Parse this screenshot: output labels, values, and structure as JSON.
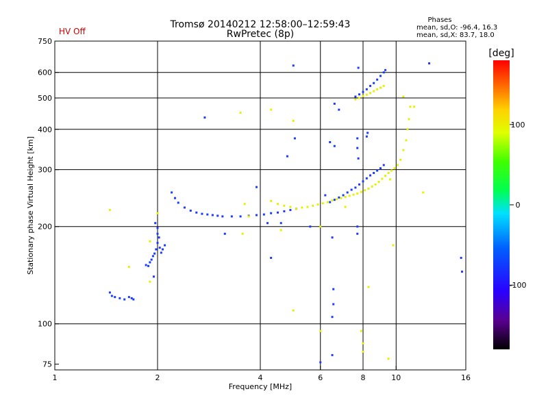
{
  "header": {
    "title_line1": "Tromsø 20140212 12:58:00–12:59:43",
    "title_line2": "RwPretec (8p)",
    "status": "HV Off",
    "phases_title": "Phases",
    "phases_o": "mean, sd,O: -96.4, 16.3",
    "phases_x": "mean, sd,X: 83.7, 18.0"
  },
  "colors": {
    "status": "#cc0000",
    "grid": "#000000"
  },
  "chart_data": {
    "type": "scatter",
    "title": "Tromsø 20140212 12:58:00–12:59:43",
    "subtitle": "RwPretec (8p)",
    "xlabel": "Frequency [MHz]",
    "ylabel": "Stationary phase Virtual Height [km]",
    "xscale": "log",
    "yscale": "log",
    "xlim": [
      1,
      16
    ],
    "ylim": [
      72,
      750
    ],
    "xticks": [
      1,
      2,
      4,
      6,
      8,
      10,
      16
    ],
    "yticks": [
      75,
      100,
      200,
      300,
      400,
      500,
      600,
      750
    ],
    "xgrid": [
      2,
      4,
      6,
      8,
      10
    ],
    "ygrid": [
      100,
      200,
      300,
      400,
      500,
      600
    ],
    "colorbar": {
      "label": "[deg]",
      "range": [
        -180,
        180
      ],
      "ticks": [
        100,
        0,
        -100
      ]
    },
    "series": [
      {
        "mode": "O",
        "phase_deg": -96.4,
        "points": [
          [
            1.45,
            125
          ],
          [
            1.47,
            122
          ],
          [
            1.5,
            121
          ],
          [
            1.55,
            120
          ],
          [
            1.6,
            119
          ],
          [
            1.65,
            121
          ],
          [
            1.68,
            120
          ],
          [
            1.7,
            119
          ],
          [
            1.85,
            152
          ],
          [
            1.88,
            151
          ],
          [
            1.9,
            155
          ],
          [
            1.92,
            158
          ],
          [
            1.94,
            162
          ],
          [
            1.96,
            165
          ],
          [
            1.98,
            170
          ],
          [
            2.0,
            178
          ],
          [
            2.0,
            190
          ],
          [
            2.02,
            185
          ],
          [
            2.03,
            172
          ],
          [
            2.05,
            166
          ],
          [
            2.07,
            170
          ],
          [
            2.1,
            175
          ],
          [
            1.97,
            205
          ],
          [
            2.0,
            198
          ],
          [
            2.2,
            255
          ],
          [
            2.25,
            245
          ],
          [
            2.3,
            237
          ],
          [
            2.4,
            229
          ],
          [
            2.5,
            224
          ],
          [
            2.6,
            221
          ],
          [
            2.7,
            219
          ],
          [
            2.8,
            218
          ],
          [
            2.9,
            217
          ],
          [
            3.0,
            216
          ],
          [
            3.1,
            215
          ],
          [
            3.3,
            215
          ],
          [
            3.5,
            215
          ],
          [
            3.7,
            216
          ],
          [
            3.9,
            217
          ],
          [
            4.1,
            218
          ],
          [
            4.3,
            220
          ],
          [
            4.5,
            221
          ],
          [
            4.7,
            223
          ],
          [
            4.9,
            225
          ],
          [
            5.1,
            227
          ],
          [
            6.4,
            238
          ],
          [
            6.6,
            242
          ],
          [
            6.8,
            246
          ],
          [
            7.0,
            250
          ],
          [
            7.2,
            255
          ],
          [
            7.4,
            260
          ],
          [
            7.6,
            264
          ],
          [
            7.8,
            270
          ],
          [
            8.0,
            276
          ],
          [
            8.2,
            282
          ],
          [
            8.4,
            288
          ],
          [
            8.6,
            293
          ],
          [
            8.8,
            298
          ],
          [
            9.0,
            303
          ],
          [
            9.2,
            310
          ],
          [
            7.6,
            505
          ],
          [
            7.8,
            513
          ],
          [
            8.0,
            522
          ],
          [
            8.2,
            532
          ],
          [
            8.4,
            545
          ],
          [
            8.6,
            556
          ],
          [
            8.8,
            570
          ],
          [
            9.0,
            585
          ],
          [
            9.2,
            600
          ],
          [
            9.3,
            610
          ],
          [
            3.15,
            190
          ],
          [
            4.2,
            205
          ],
          [
            4.6,
            205
          ],
          [
            5.6,
            200
          ],
          [
            4.3,
            160
          ],
          [
            5.0,
            630
          ],
          [
            5.05,
            375
          ],
          [
            4.8,
            330
          ],
          [
            2.75,
            435
          ],
          [
            3.9,
            265
          ],
          [
            1.95,
            140
          ],
          [
            6.4,
            365
          ],
          [
            6.6,
            355
          ],
          [
            6.2,
            250
          ],
          [
            6.55,
            128
          ],
          [
            6.55,
            115
          ],
          [
            6.5,
            105
          ],
          [
            6.5,
            80
          ],
          [
            6.0,
            76
          ],
          [
            7.7,
            200
          ],
          [
            7.7,
            190
          ],
          [
            7.75,
            620
          ],
          [
            7.7,
            350
          ],
          [
            7.75,
            325
          ],
          [
            8.2,
            380
          ],
          [
            8.25,
            390
          ],
          [
            6.6,
            480
          ],
          [
            6.8,
            460
          ],
          [
            15.5,
            160
          ],
          [
            15.6,
            145
          ],
          [
            12.5,
            640
          ],
          [
            7.7,
            375
          ],
          [
            6.5,
            185
          ]
        ]
      },
      {
        "mode": "X",
        "phase_deg": 83.7,
        "points": [
          [
            5.1,
            227
          ],
          [
            5.3,
            229
          ],
          [
            5.5,
            230
          ],
          [
            5.7,
            232
          ],
          [
            5.9,
            234
          ],
          [
            6.1,
            236
          ],
          [
            6.3,
            238
          ],
          [
            6.5,
            241
          ],
          [
            6.7,
            243
          ],
          [
            6.9,
            245
          ],
          [
            7.1,
            247
          ],
          [
            7.3,
            249
          ],
          [
            7.5,
            251
          ],
          [
            7.7,
            253
          ],
          [
            7.9,
            256
          ],
          [
            8.1,
            259
          ],
          [
            8.3,
            262
          ],
          [
            8.5,
            266
          ],
          [
            8.7,
            270
          ],
          [
            8.9,
            275
          ],
          [
            9.1,
            281
          ],
          [
            9.3,
            287
          ],
          [
            9.5,
            293
          ],
          [
            9.7,
            298
          ],
          [
            9.9,
            303
          ],
          [
            10.1,
            310
          ],
          [
            10.3,
            322
          ],
          [
            10.5,
            345
          ],
          [
            10.7,
            370
          ],
          [
            10.8,
            400
          ],
          [
            10.9,
            430
          ],
          [
            11.0,
            470
          ],
          [
            7.6,
            495
          ],
          [
            7.8,
            500
          ],
          [
            8.0,
            507
          ],
          [
            8.2,
            512
          ],
          [
            8.4,
            518
          ],
          [
            8.6,
            525
          ],
          [
            8.8,
            532
          ],
          [
            9.0,
            538
          ],
          [
            9.2,
            545
          ],
          [
            4.3,
            240
          ],
          [
            4.5,
            235
          ],
          [
            4.7,
            232
          ],
          [
            4.9,
            230
          ],
          [
            3.5,
            450
          ],
          [
            4.3,
            460
          ],
          [
            5.0,
            425
          ],
          [
            3.6,
            235
          ],
          [
            3.7,
            215
          ],
          [
            1.45,
            225
          ],
          [
            1.65,
            150
          ],
          [
            1.9,
            180
          ],
          [
            1.9,
            135
          ],
          [
            2.0,
            220
          ],
          [
            3.55,
            190
          ],
          [
            4.6,
            195
          ],
          [
            5.0,
            110
          ],
          [
            6.0,
            200
          ],
          [
            6.0,
            95
          ],
          [
            7.1,
            230
          ],
          [
            7.9,
            95
          ],
          [
            8.3,
            130
          ],
          [
            8.0,
            87
          ],
          [
            8.0,
            82
          ],
          [
            9.5,
            78
          ],
          [
            11.3,
            470
          ],
          [
            12.0,
            255
          ],
          [
            9.6,
            280
          ],
          [
            9.8,
            175
          ],
          [
            10.5,
            505
          ]
        ]
      }
    ]
  }
}
